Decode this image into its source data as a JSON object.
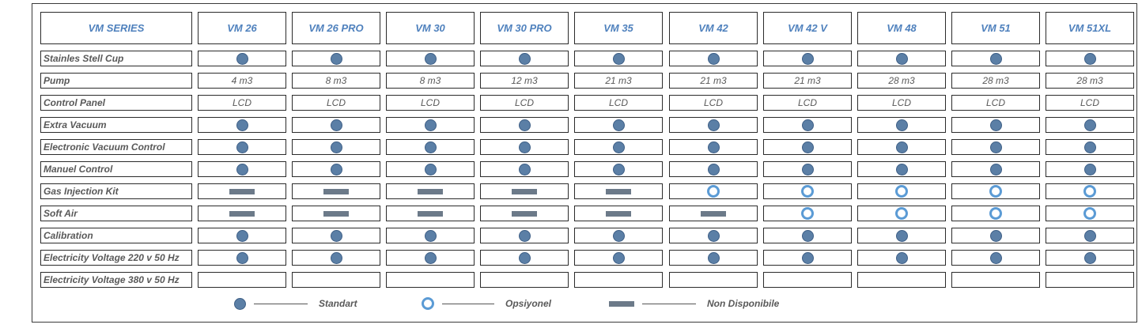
{
  "table": {
    "header_label": "VM SERIES",
    "models": [
      "VM 26",
      "VM 26  PRO",
      "VM 30",
      "VM 30 PRO",
      "VM 35",
      "VM 42",
      "VM 42 V",
      "VM 48",
      "VM 51",
      "VM 51XL"
    ],
    "rows": [
      {
        "label": "Stainles Stell Cup",
        "values": [
          "standart",
          "standart",
          "standart",
          "standart",
          "standart",
          "standart",
          "standart",
          "standart",
          "standart",
          "standart"
        ]
      },
      {
        "label": "Pump",
        "values": [
          "4 m3",
          "8 m3",
          "8 m3",
          "12 m3",
          "21 m3",
          "21 m3",
          "21 m3",
          "28 m3",
          "28 m3",
          "28 m3"
        ]
      },
      {
        "label": "Control Panel",
        "values": [
          "LCD",
          "LCD",
          "LCD",
          "LCD",
          "LCD",
          "LCD",
          "LCD",
          "LCD",
          "LCD",
          "LCD"
        ]
      },
      {
        "label": "Extra Vacuum",
        "values": [
          "standart",
          "standart",
          "standart",
          "standart",
          "standart",
          "standart",
          "standart",
          "standart",
          "standart",
          "standart"
        ]
      },
      {
        "label": "Electronic Vacuum Control",
        "values": [
          "standart",
          "standart",
          "standart",
          "standart",
          "standart",
          "standart",
          "standart",
          "standart",
          "standart",
          "standart"
        ]
      },
      {
        "label": "Manuel Control",
        "values": [
          "standart",
          "standart",
          "standart",
          "standart",
          "standart",
          "standart",
          "standart",
          "standart",
          "standart",
          "standart"
        ]
      },
      {
        "label": "Gas Injection Kit",
        "values": [
          "none",
          "none",
          "none",
          "none",
          "none",
          "optional",
          "optional",
          "optional",
          "optional",
          "optional"
        ]
      },
      {
        "label": "Soft Air",
        "values": [
          "none",
          "none",
          "none",
          "none",
          "none",
          "none",
          "optional",
          "optional",
          "optional",
          "optional"
        ]
      },
      {
        "label": "Calibration",
        "values": [
          "standart",
          "standart",
          "standart",
          "standart",
          "standart",
          "standart",
          "standart",
          "standart",
          "standart",
          "standart"
        ]
      },
      {
        "label": "Electricity Voltage 220 v 50 Hz",
        "values": [
          "standart",
          "standart",
          "standart",
          "standart",
          "standart",
          "standart",
          "standart",
          "standart",
          "standart",
          "standart"
        ]
      },
      {
        "label": "Electricity Voltage 380 v 50 Hz",
        "values": [
          "",
          "",
          "",
          "",
          "",
          "",
          "",
          "",
          "",
          ""
        ]
      }
    ]
  },
  "legend": {
    "standart": "Standart",
    "optional": "Opsiyonel",
    "none": "Non Disponibile"
  },
  "colors": {
    "header_text": "#4f81bd",
    "dot_fill": "#5b7fa6",
    "ring_stroke": "#5b9bd5",
    "bar_fill": "#6c7a89"
  }
}
